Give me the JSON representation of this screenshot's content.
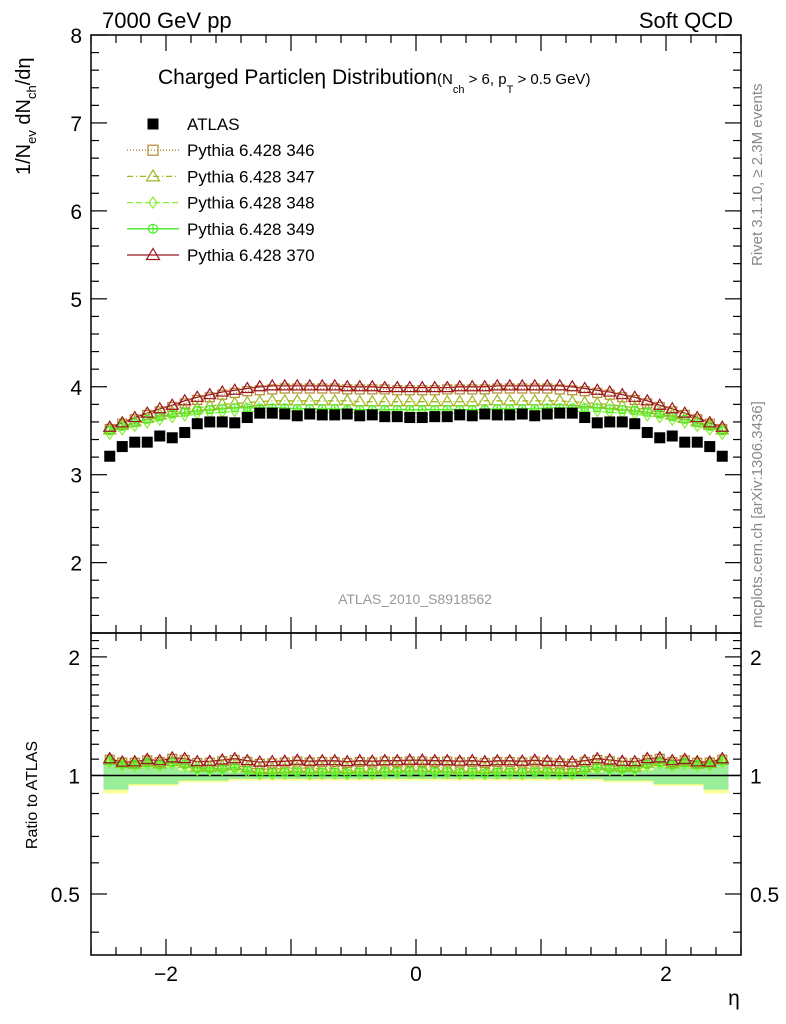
{
  "header": {
    "left": "7000 GeV pp",
    "right": "Soft QCD"
  },
  "title": {
    "main": "Charged Particle",
    "eta": "η",
    "main2": " Distribution",
    "cond_open": "(N",
    "cond_sub1": "ch",
    "cond_mid": " > 6, p",
    "cond_sub2": "T",
    "cond_end": " > 0.5 GeV)"
  },
  "ylabel_top": {
    "p1": "1/N",
    "s1": "ev",
    "p2": " dN",
    "s2": "ch",
    "p3": "/dη"
  },
  "ylabel_bottom": "Ratio to ATLAS",
  "xlabel": "η",
  "watermark": "ATLAS_2010_S8918562",
  "side_right_top": "Rivet 3.1.10, ≥ 2.3M events",
  "side_right_bottom": "mcplots.cern.ch [arXiv:1306.3436]",
  "colors": {
    "atlas": "#000000",
    "p346": "#b5852f",
    "p347": "#a0b820",
    "p348": "#88ee33",
    "p349": "#44ee22",
    "p370": "#9b1520",
    "band_inner": "#99ee99",
    "band_outer": "#ffff99"
  },
  "chart_data": {
    "type": "scatter",
    "title": "Charged Particle η Distribution (N_ch > 6, p_T > 0.5 GeV)",
    "xlabel": "η",
    "ylabel": "1/N_ev dN_ch/dη",
    "xlim": [
      -2.6,
      2.6
    ],
    "ylim": [
      1.2,
      8.0
    ],
    "ratio_ylim": [
      0.35,
      2.3
    ],
    "ratio_ylabel": "Ratio to ATLAS",
    "legend_position": "top-left",
    "x_ticks": [
      -2,
      0,
      2
    ],
    "x_tick_labels": [
      "−2",
      "0",
      "2"
    ],
    "y_ticks": [
      2,
      3,
      4,
      5,
      6,
      7,
      8
    ],
    "y_tick_labels": [
      "2",
      "3",
      "4",
      "5",
      "6",
      "7",
      "8"
    ],
    "ratio_ticks": [
      0.5,
      1,
      2
    ],
    "ratio_tick_labels": [
      "0.5",
      "1",
      "2"
    ],
    "x": [
      -2.45,
      -2.35,
      -2.25,
      -2.15,
      -2.05,
      -1.95,
      -1.85,
      -1.75,
      -1.65,
      -1.55,
      -1.45,
      -1.35,
      -1.25,
      -1.15,
      -1.05,
      -0.95,
      -0.85,
      -0.75,
      -0.65,
      -0.55,
      -0.45,
      -0.35,
      -0.25,
      -0.15,
      -0.05,
      0.05,
      0.15,
      0.25,
      0.35,
      0.45,
      0.55,
      0.65,
      0.75,
      0.85,
      0.95,
      1.05,
      1.15,
      1.25,
      1.35,
      1.45,
      1.55,
      1.65,
      1.75,
      1.85,
      1.95,
      2.05,
      2.15,
      2.25,
      2.35,
      2.45
    ],
    "series": [
      {
        "name": "ATLAS",
        "marker": "square",
        "values": [
          3.21,
          3.32,
          3.37,
          3.37,
          3.44,
          3.42,
          3.48,
          3.58,
          3.6,
          3.6,
          3.59,
          3.65,
          3.7,
          3.7,
          3.69,
          3.67,
          3.69,
          3.68,
          3.68,
          3.69,
          3.67,
          3.68,
          3.66,
          3.66,
          3.65,
          3.65,
          3.66,
          3.66,
          3.68,
          3.67,
          3.69,
          3.68,
          3.68,
          3.69,
          3.67,
          3.69,
          3.7,
          3.7,
          3.65,
          3.59,
          3.6,
          3.6,
          3.58,
          3.48,
          3.42,
          3.44,
          3.37,
          3.37,
          3.32,
          3.21
        ]
      },
      {
        "name": "Pythia 6.428 346",
        "marker": "open-square",
        "values": [
          3.52,
          3.58,
          3.63,
          3.68,
          3.72,
          3.77,
          3.81,
          3.85,
          3.88,
          3.91,
          3.93,
          3.95,
          3.96,
          3.97,
          3.98,
          3.98,
          3.98,
          3.98,
          3.98,
          3.97,
          3.97,
          3.97,
          3.97,
          3.96,
          3.96,
          3.96,
          3.96,
          3.97,
          3.97,
          3.97,
          3.97,
          3.98,
          3.98,
          3.98,
          3.98,
          3.98,
          3.97,
          3.96,
          3.95,
          3.93,
          3.91,
          3.88,
          3.85,
          3.81,
          3.77,
          3.72,
          3.68,
          3.63,
          3.58,
          3.52
        ]
      },
      {
        "name": "Pythia 6.428 347",
        "marker": "open-triangle",
        "values": [
          3.51,
          3.56,
          3.6,
          3.64,
          3.68,
          3.71,
          3.74,
          3.76,
          3.78,
          3.8,
          3.81,
          3.82,
          3.83,
          3.84,
          3.84,
          3.84,
          3.84,
          3.84,
          3.84,
          3.84,
          3.83,
          3.83,
          3.83,
          3.83,
          3.83,
          3.83,
          3.83,
          3.83,
          3.83,
          3.83,
          3.84,
          3.84,
          3.84,
          3.84,
          3.84,
          3.84,
          3.84,
          3.83,
          3.82,
          3.81,
          3.8,
          3.78,
          3.76,
          3.74,
          3.71,
          3.68,
          3.64,
          3.6,
          3.56,
          3.51
        ]
      },
      {
        "name": "Pythia 6.428 348",
        "marker": "open-diamond",
        "values": [
          3.46,
          3.51,
          3.55,
          3.59,
          3.62,
          3.65,
          3.67,
          3.69,
          3.7,
          3.71,
          3.72,
          3.72,
          3.72,
          3.72,
          3.72,
          3.72,
          3.71,
          3.71,
          3.71,
          3.71,
          3.7,
          3.7,
          3.7,
          3.7,
          3.7,
          3.7,
          3.7,
          3.7,
          3.7,
          3.7,
          3.71,
          3.71,
          3.71,
          3.71,
          3.72,
          3.72,
          3.72,
          3.72,
          3.72,
          3.72,
          3.71,
          3.7,
          3.69,
          3.67,
          3.65,
          3.62,
          3.59,
          3.55,
          3.51,
          3.46
        ]
      },
      {
        "name": "Pythia 6.428 349",
        "marker": "open-circle",
        "values": [
          3.5,
          3.55,
          3.59,
          3.63,
          3.66,
          3.69,
          3.71,
          3.73,
          3.74,
          3.75,
          3.76,
          3.76,
          3.76,
          3.76,
          3.76,
          3.75,
          3.75,
          3.75,
          3.75,
          3.74,
          3.74,
          3.74,
          3.74,
          3.74,
          3.74,
          3.74,
          3.74,
          3.74,
          3.74,
          3.74,
          3.74,
          3.75,
          3.75,
          3.75,
          3.75,
          3.76,
          3.76,
          3.76,
          3.76,
          3.76,
          3.75,
          3.74,
          3.73,
          3.71,
          3.69,
          3.66,
          3.63,
          3.59,
          3.55,
          3.5
        ]
      },
      {
        "name": "Pythia 6.428 370",
        "marker": "open-triangle",
        "values": [
          3.54,
          3.59,
          3.65,
          3.7,
          3.75,
          3.79,
          3.84,
          3.88,
          3.91,
          3.94,
          3.96,
          3.98,
          4.0,
          4.01,
          4.01,
          4.01,
          4.01,
          4.01,
          4.01,
          4.0,
          4.0,
          4.0,
          3.99,
          3.99,
          3.99,
          3.99,
          3.99,
          3.99,
          4.0,
          4.0,
          4.0,
          4.01,
          4.01,
          4.01,
          4.01,
          4.01,
          4.01,
          4.0,
          3.98,
          3.96,
          3.94,
          3.91,
          3.88,
          3.84,
          3.79,
          3.75,
          3.7,
          3.65,
          3.59,
          3.54
        ]
      }
    ],
    "ratio_band": {
      "edges": [
        -2.5,
        -2.3,
        -1.9,
        -1.5,
        1.5,
        1.9,
        2.3,
        2.5
      ],
      "inner": [
        0.08,
        0.05,
        0.03,
        0.02,
        0.03,
        0.05,
        0.08
      ],
      "outer": [
        0.1,
        0.06,
        0.04,
        0.03,
        0.04,
        0.06,
        0.1
      ]
    }
  }
}
